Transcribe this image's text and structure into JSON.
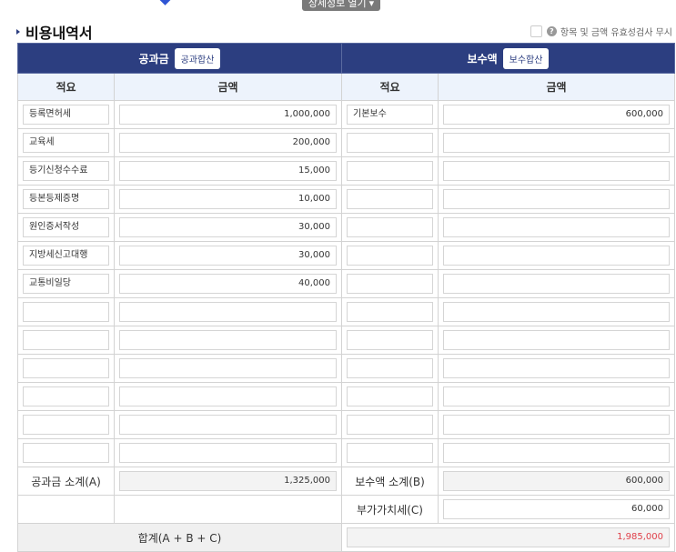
{
  "top_button": "상세정보 열기 ▾",
  "section_title": "비용내역서",
  "ignore_check_label": "항목 및 금액 유효성검사 무시",
  "headers": {
    "public": "공과금",
    "public_sum_btn": "공과합산",
    "fee": "보수액",
    "fee_sum_btn": "보수합산",
    "desc": "적요",
    "amount": "금액"
  },
  "public_rows": [
    {
      "desc": "등록면허세",
      "amount": "1,000,000"
    },
    {
      "desc": "교육세",
      "amount": "200,000"
    },
    {
      "desc": "등기신청수수료",
      "amount": "15,000"
    },
    {
      "desc": "등본등제증명",
      "amount": "10,000"
    },
    {
      "desc": "원인증서작성",
      "amount": "30,000"
    },
    {
      "desc": "지방세신고대행",
      "amount": "30,000"
    },
    {
      "desc": "교통비일당",
      "amount": "40,000"
    },
    {
      "desc": "",
      "amount": ""
    },
    {
      "desc": "",
      "amount": ""
    },
    {
      "desc": "",
      "amount": ""
    },
    {
      "desc": "",
      "amount": ""
    },
    {
      "desc": "",
      "amount": ""
    },
    {
      "desc": "",
      "amount": ""
    }
  ],
  "fee_rows": [
    {
      "desc": "기본보수",
      "amount": "600,000"
    },
    {
      "desc": "",
      "amount": ""
    },
    {
      "desc": "",
      "amount": ""
    },
    {
      "desc": "",
      "amount": ""
    },
    {
      "desc": "",
      "amount": ""
    },
    {
      "desc": "",
      "amount": ""
    },
    {
      "desc": "",
      "amount": ""
    },
    {
      "desc": "",
      "amount": ""
    },
    {
      "desc": "",
      "amount": ""
    },
    {
      "desc": "",
      "amount": ""
    },
    {
      "desc": "",
      "amount": ""
    },
    {
      "desc": "",
      "amount": ""
    },
    {
      "desc": "",
      "amount": ""
    }
  ],
  "summary": {
    "public_subtotal_label": "공과금 소계(A)",
    "public_subtotal": "1,325,000",
    "fee_subtotal_label": "보수액 소계(B)",
    "fee_subtotal": "600,000",
    "vat_label": "부가가치세(C)",
    "vat": "60,000",
    "total_label": "합계(A + B + C)",
    "total": "1,985,000"
  },
  "colors": {
    "header": "#2c3e80",
    "subheader": "#edf3fc",
    "total": "#e0404a"
  }
}
